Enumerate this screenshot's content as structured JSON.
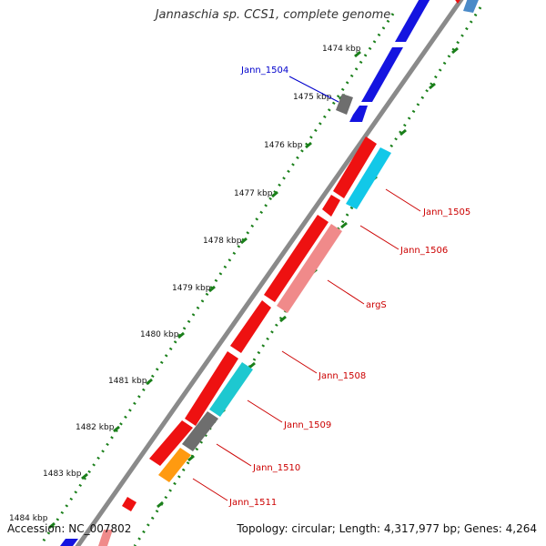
{
  "title": "Jannaschia sp. CCS1, complete genome",
  "footer": {
    "accession_label": "Accession:",
    "accession": "NC_007802",
    "topology_text": "Topology: circular; Length: 4,317,977 bp; Genes: 4,264"
  },
  "colors": {
    "backbone": "#8a8a8a",
    "tick": "#1a7f1a",
    "gene_red": "#ee1111",
    "gene_pink": "#f08a8a",
    "gene_blue": "#1414e0",
    "gene_steelblue": "#4a8ac8",
    "gene_cyan": "#12c8e8",
    "gene_teal": "#1ec8d0",
    "gene_gray": "#6e6e6e",
    "gene_orange": "#ff9a10",
    "label_red": "#cc0000",
    "label_blue": "#0000cc"
  },
  "kbp_ticks": [
    "1474 kbp",
    "1475 kbp",
    "1476 kbp",
    "1477 kbp",
    "1478 kbp",
    "1479 kbp",
    "1480 kbp",
    "1481 kbp",
    "1482 kbp",
    "1483 kbp",
    "1484 kbp"
  ],
  "gene_labels": [
    "Jann_1504",
    "Jann_1505",
    "Jann_1506",
    "argS",
    "Jann_1508",
    "Jann_1509",
    "Jann_1510",
    "Jann_1511"
  ]
}
